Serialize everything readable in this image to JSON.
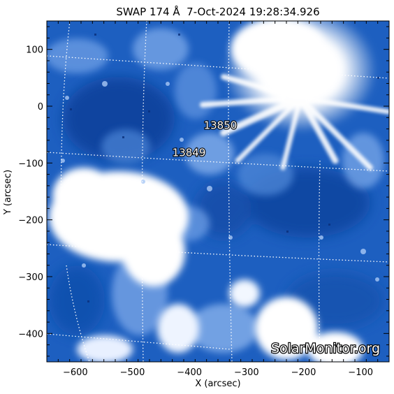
{
  "title": "SWAP 174 Å  7-Oct-2024 19:28:34.926",
  "xlabel": "X (arcsec)",
  "ylabel": "Y (arcsec)",
  "x_ticks": [
    "−600",
    "−500",
    "−400",
    "−300",
    "−200",
    "−100"
  ],
  "y_ticks": [
    "100",
    "0",
    "−100",
    "−200",
    "−300",
    "−400"
  ],
  "regions": [
    {
      "name": "13850",
      "x": -375,
      "y": -40
    },
    {
      "name": "13849",
      "x": -430,
      "y": -88
    }
  ],
  "watermark": "SolarMonitor.org",
  "colors": {
    "image_base": "#1d5fc0",
    "bright": "#ffffff",
    "grid": "#ffffff"
  }
}
